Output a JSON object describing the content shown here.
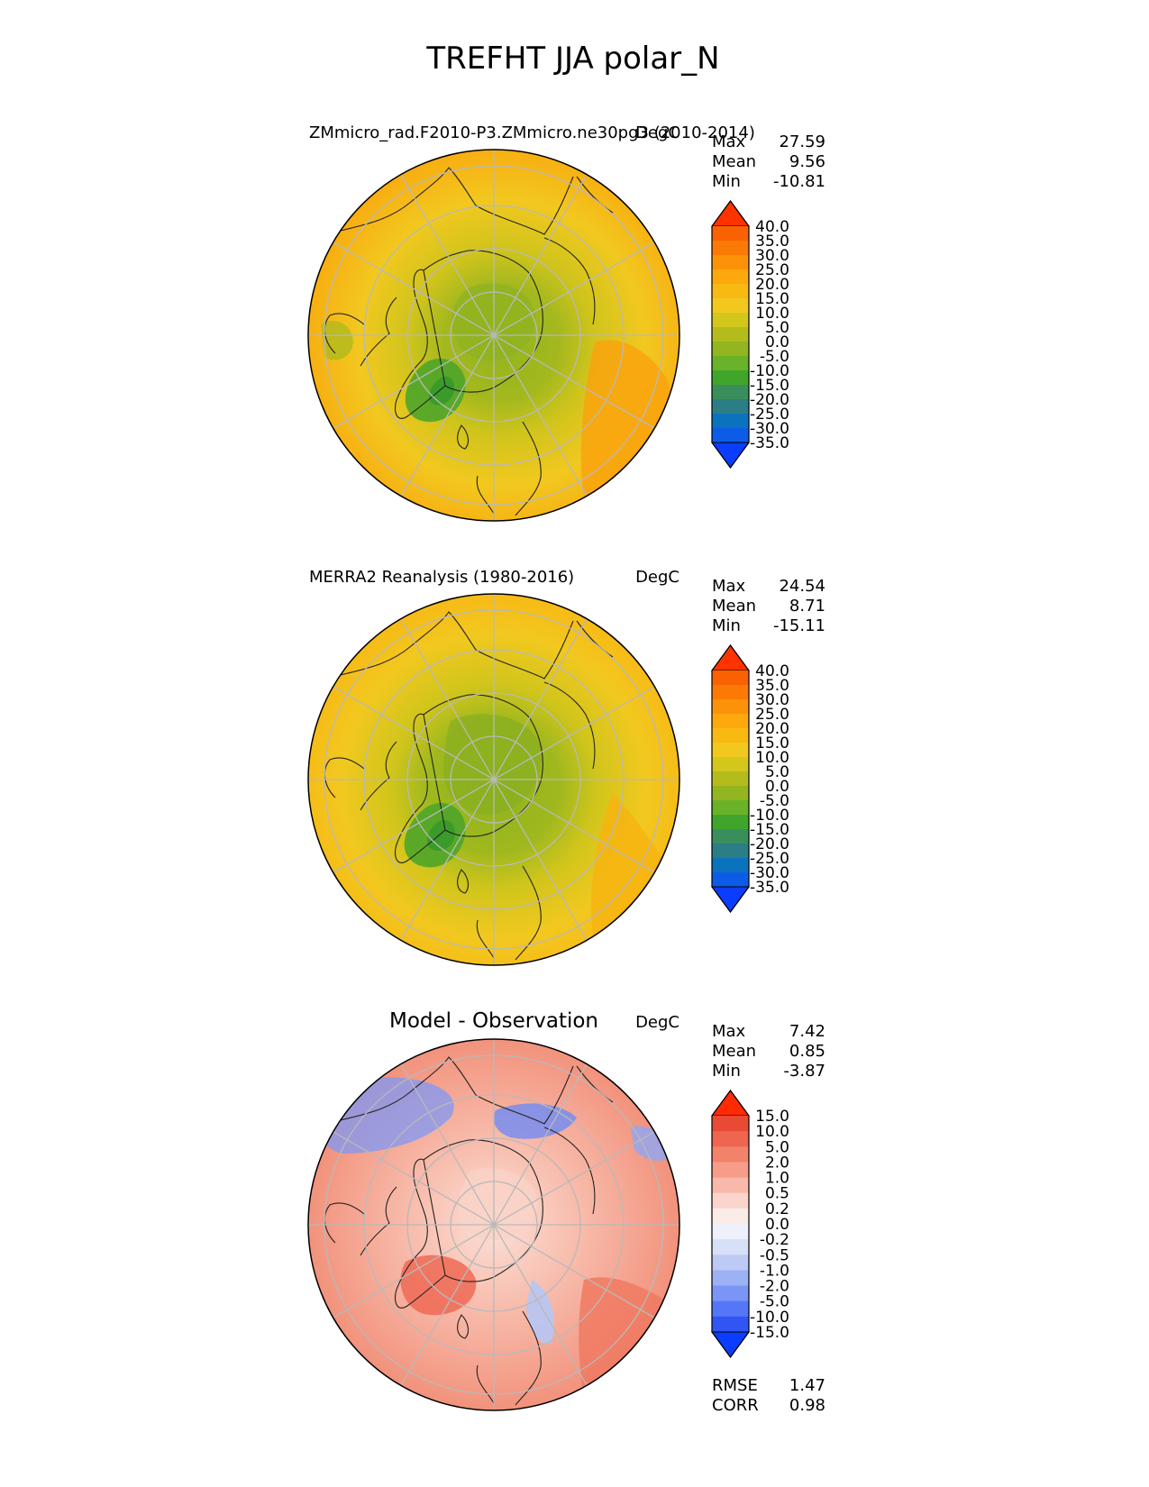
{
  "figure": {
    "title": "TREFHT JJA polar_N"
  },
  "colors": {
    "abs_levels": [
      "#0a3dff",
      "#0d5ce8",
      "#0b72bd",
      "#2b7d86",
      "#3a8e5c",
      "#3fa62b",
      "#6ab22a",
      "#93b51f",
      "#b4bc1c",
      "#d4c71c",
      "#f2c81f",
      "#f8b912",
      "#fda80c",
      "#fc9208",
      "#fb7a05",
      "#f96102",
      "#ff3300"
    ],
    "diff_levels": [
      "#0a3dff",
      "#3155f5",
      "#5577f7",
      "#7a95f6",
      "#9db1f5",
      "#bccaf5",
      "#d8e0f8",
      "#eef1fb",
      "#fbece8",
      "#fbd5cc",
      "#f8b9aa",
      "#f69c88",
      "#f3826b",
      "#ee6550",
      "#e94a36",
      "#ff2b05"
    ]
  },
  "chart_data": [
    {
      "type": "polar_map",
      "panel": "model",
      "title_left": "ZMmicro_rad.F2010-P3.ZMmicro.ne30pg3 (2010-2014)",
      "units": "DegC",
      "stats": {
        "Max": "27.59",
        "Mean": "9.56",
        "Min": "-10.81"
      },
      "colorbar_levels": [
        -35,
        -30,
        -25,
        -20,
        -15,
        -10,
        -5,
        0,
        5,
        10,
        15,
        20,
        25,
        30,
        35,
        40
      ],
      "colorbar_labels": [
        "40.0",
        "35.0",
        "30.0",
        "25.0",
        "20.0",
        "15.0",
        "10.0",
        "5.0",
        "0.0",
        "-5.0",
        "-10.0",
        "-15.0",
        "-20.0",
        "-25.0",
        "-30.0",
        "-35.0"
      ]
    },
    {
      "type": "polar_map",
      "panel": "observation",
      "title_left": "MERRA2 Reanalysis (1980-2016)",
      "units": "DegC",
      "stats": {
        "Max": "24.54",
        "Mean": "8.71",
        "Min": "-15.11"
      },
      "colorbar_levels": [
        -35,
        -30,
        -25,
        -20,
        -15,
        -10,
        -5,
        0,
        5,
        10,
        15,
        20,
        25,
        30,
        35,
        40
      ],
      "colorbar_labels": [
        "40.0",
        "35.0",
        "30.0",
        "25.0",
        "20.0",
        "15.0",
        "10.0",
        "5.0",
        "0.0",
        "-5.0",
        "-10.0",
        "-15.0",
        "-20.0",
        "-25.0",
        "-30.0",
        "-35.0"
      ]
    },
    {
      "type": "polar_map",
      "panel": "difference",
      "title_center": "Model - Observation",
      "units": "DegC",
      "stats": {
        "Max": "7.42",
        "Mean": "0.85",
        "Min": "-3.87"
      },
      "colorbar_levels": [
        -15,
        -10,
        -5,
        -2,
        -1,
        -0.5,
        -0.2,
        0,
        0.2,
        0.5,
        1,
        2,
        5,
        10,
        15
      ],
      "colorbar_labels": [
        "15.0",
        "10.0",
        "5.0",
        "2.0",
        "1.0",
        "0.5",
        "0.2",
        "0.0",
        "-0.2",
        "-0.5",
        "-1.0",
        "-2.0",
        "-5.0",
        "-10.0",
        "-15.0"
      ],
      "metrics": {
        "RMSE": "1.47",
        "CORR": "0.98"
      }
    }
  ]
}
